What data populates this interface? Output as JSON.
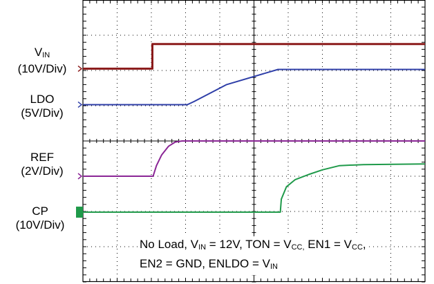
{
  "chart_data": {
    "type": "line",
    "title": "",
    "xlabel": "",
    "ylabel": "",
    "grid": "dotted 10x8 divisions",
    "x_divisions": 10,
    "y_divisions": 8,
    "x_units": "divisions",
    "channels": [
      {
        "name_main": "V",
        "name_sub": "IN",
        "scale_label": "(10V/Div)",
        "color": "#8b1a1a",
        "points": [
          [
            0,
            6.05
          ],
          [
            2.03,
            6.05
          ],
          [
            2.03,
            6.75
          ],
          [
            10,
            6.75
          ]
        ]
      },
      {
        "name_main": "LDO",
        "name_sub": "",
        "scale_label": "(5V/Div)",
        "color": "#2e3ea8",
        "points": [
          [
            0,
            5.03
          ],
          [
            3.05,
            5.03
          ],
          [
            3.25,
            5.12
          ],
          [
            4.2,
            5.6
          ],
          [
            5.7,
            6.03
          ],
          [
            10,
            6.03
          ]
        ]
      },
      {
        "name_main": "REF",
        "name_sub": "",
        "scale_label": "(2V/Div)",
        "color": "#8a2595",
        "points": [
          [
            0,
            3.0
          ],
          [
            2.05,
            3.0
          ],
          [
            2.15,
            3.3
          ],
          [
            2.3,
            3.6
          ],
          [
            2.5,
            3.85
          ],
          [
            2.7,
            3.97
          ],
          [
            2.9,
            4.0
          ],
          [
            10,
            4.0
          ]
        ]
      },
      {
        "name_main": "CP",
        "name_sub": "",
        "scale_label": "(10V/Div)",
        "color": "#1f9a4a",
        "points": [
          [
            0,
            1.98
          ],
          [
            5.77,
            1.98
          ],
          [
            5.8,
            2.35
          ],
          [
            5.95,
            2.7
          ],
          [
            6.2,
            2.9
          ],
          [
            6.6,
            3.05
          ],
          [
            7.0,
            3.18
          ],
          [
            7.5,
            3.3
          ],
          [
            8.2,
            3.33
          ],
          [
            10,
            3.35
          ]
        ]
      }
    ],
    "annotation": {
      "line1": [
        "No Load, V",
        "IN",
        " = 12V, TON = V",
        "CC,",
        " EN1 = V",
        "CC",
        ","
      ],
      "line2": [
        "EN2 = GND, ENLDO = V",
        "IN"
      ]
    }
  }
}
